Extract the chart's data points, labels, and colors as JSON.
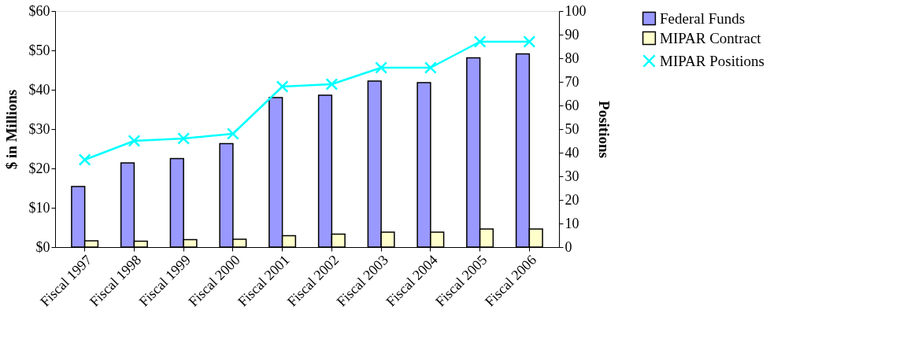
{
  "chart_data": {
    "type": "bar",
    "ylabel": "$ in Millions",
    "y2label": "Positions",
    "categories": [
      "Fiscal 1997",
      "Fiscal 1998",
      "Fiscal 1999",
      "Fiscal 2000",
      "Fiscal 2001",
      "Fiscal 2002",
      "Fiscal 2003",
      "Fiscal 2004",
      "Fiscal 2005",
      "Fiscal 2006"
    ],
    "series": [
      {
        "name": "Federal Funds",
        "color": "#9999ff",
        "values": [
          15.4,
          21.4,
          22.5,
          26.3,
          38.0,
          38.6,
          42.2,
          41.8,
          48.1,
          49.1
        ]
      },
      {
        "name": "MIPAR Contract",
        "color": "#ffffcc",
        "values": [
          1.6,
          1.5,
          1.9,
          2.0,
          2.9,
          3.3,
          3.8,
          3.8,
          4.6,
          4.6
        ]
      },
      {
        "name": "MIPAR Positions",
        "color": "#00ffff",
        "type": "line",
        "axis": "y2",
        "marker": "cross",
        "values": [
          37,
          45,
          46,
          48,
          68,
          69,
          76,
          76,
          87,
          87
        ]
      }
    ],
    "ylim": [
      0,
      60
    ],
    "yticks": [
      {
        "value": 0,
        "label": "$0"
      },
      {
        "value": 10,
        "label": "$10"
      },
      {
        "value": 20,
        "label": "$20"
      },
      {
        "value": 30,
        "label": "$30"
      },
      {
        "value": 40,
        "label": "$40"
      },
      {
        "value": 50,
        "label": "$50"
      },
      {
        "value": 60,
        "label": "$60"
      }
    ],
    "y2lim": [
      0,
      100
    ],
    "y2ticks": [
      0,
      10,
      20,
      30,
      40,
      50,
      60,
      70,
      80,
      90,
      100
    ],
    "grid": false,
    "legend": "right"
  }
}
